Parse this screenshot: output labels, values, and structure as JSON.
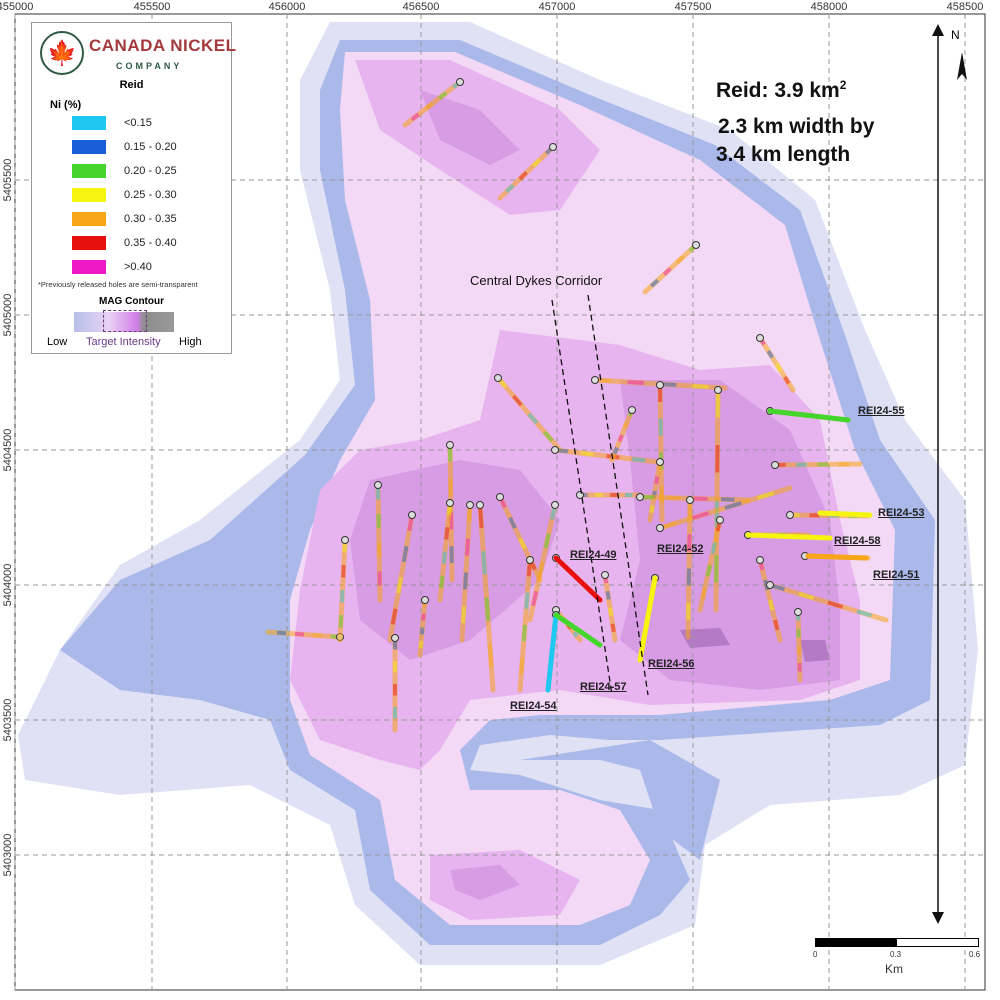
{
  "axes": {
    "x_ticks": [
      "455000",
      "455500",
      "456000",
      "456500",
      "457000",
      "457500",
      "458000",
      "458500"
    ],
    "y_ticks": [
      "5405500",
      "5405000",
      "5404500",
      "5404000",
      "5403500",
      "5403000"
    ]
  },
  "legend": {
    "logo_text": "CANADA NICKEL",
    "logo_subtext": "COMPANY",
    "title": "Reid",
    "subtitle": "Ni (%)",
    "items": [
      {
        "label": "<0.15",
        "color": "#1ec8f0"
      },
      {
        "label": "0.15 - 0.20",
        "color": "#1a5fd8"
      },
      {
        "label": "0.20 - 0.25",
        "color": "#44d62c"
      },
      {
        "label": "0.25 - 0.30",
        "color": "#f5f511"
      },
      {
        "label": "0.30 - 0.35",
        "color": "#f7a617"
      },
      {
        "label": "0.35 - 0.40",
        "color": "#e80f0f"
      },
      {
        "label": ">0.40",
        "color": "#f019c8"
      }
    ],
    "note": "*Previously released holes are semi-transparent",
    "mag_title": "MAG Contour",
    "mag_low": "Low",
    "mag_target": "Target Intensity",
    "mag_high": "High"
  },
  "info": {
    "area": "Reid: 3.9 km",
    "area_sup": "2",
    "dims_line1": "2.3 km width by",
    "dims_line2": "3.4 km length"
  },
  "corridor_label": "Central Dykes Corridor",
  "holes": [
    "REI24-55",
    "REI24-53",
    "REI24-58",
    "REI24-51",
    "REI24-49",
    "REI24-52",
    "REI24-56",
    "REI24-57",
    "REI24-54"
  ],
  "north": "N",
  "scale": {
    "ticks": [
      "0",
      "0.3",
      "0.6"
    ],
    "unit": "Km"
  },
  "mag_colors": {
    "outer": "#e0e1f4",
    "band": "#aab8ea",
    "light_pink": "#f3d9f6",
    "pink": "#e8b4ef",
    "dark": "#d79ce4"
  }
}
